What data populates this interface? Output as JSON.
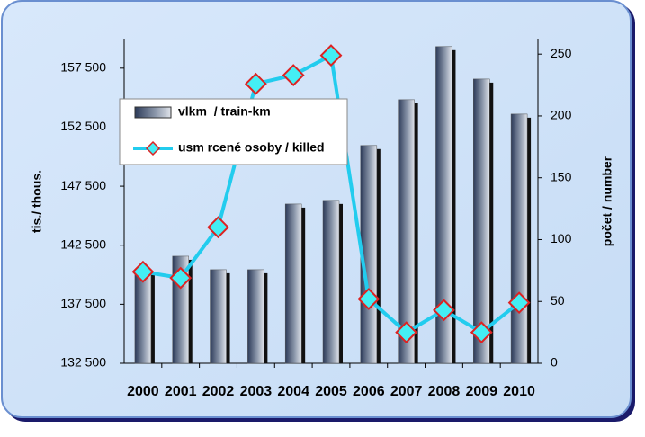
{
  "chart_data": {
    "type": "bar_line",
    "categories": [
      "2000",
      "2001",
      "2002",
      "2003",
      "2004",
      "2005",
      "2006",
      "2007",
      "2008",
      "2009",
      "2010"
    ],
    "ylabel": "tis./ thous.",
    "y2label": "počet / number",
    "ylim": [
      132500,
      160000
    ],
    "yticks": [
      {
        "value": 132500,
        "label": "132 500"
      },
      {
        "value": 137500,
        "label": "137 500"
      },
      {
        "value": 142500,
        "label": "142 500"
      },
      {
        "value": 147500,
        "label": "147 500"
      },
      {
        "value": 152500,
        "label": "152 500"
      },
      {
        "value": 157500,
        "label": "157 500"
      }
    ],
    "y2lim": [
      0,
      262.5
    ],
    "y2ticks": [
      0,
      50,
      100,
      150,
      200,
      250
    ],
    "series": [
      {
        "name": "vlkm  / train-km",
        "type": "bar",
        "color": "#2c3a58",
        "values": [
          140400,
          141570,
          140430,
          140430,
          145990,
          146300,
          150950,
          154830,
          159330,
          156580,
          153610
        ]
      },
      {
        "name": "usm rcené osoby / killed",
        "type": "line",
        "axis": "y2",
        "color": "#22ccee",
        "marker_edge_color": "#dd2222",
        "values": [
          74,
          69,
          110,
          226,
          233,
          249,
          52,
          25,
          43,
          25,
          49
        ]
      }
    ]
  }
}
